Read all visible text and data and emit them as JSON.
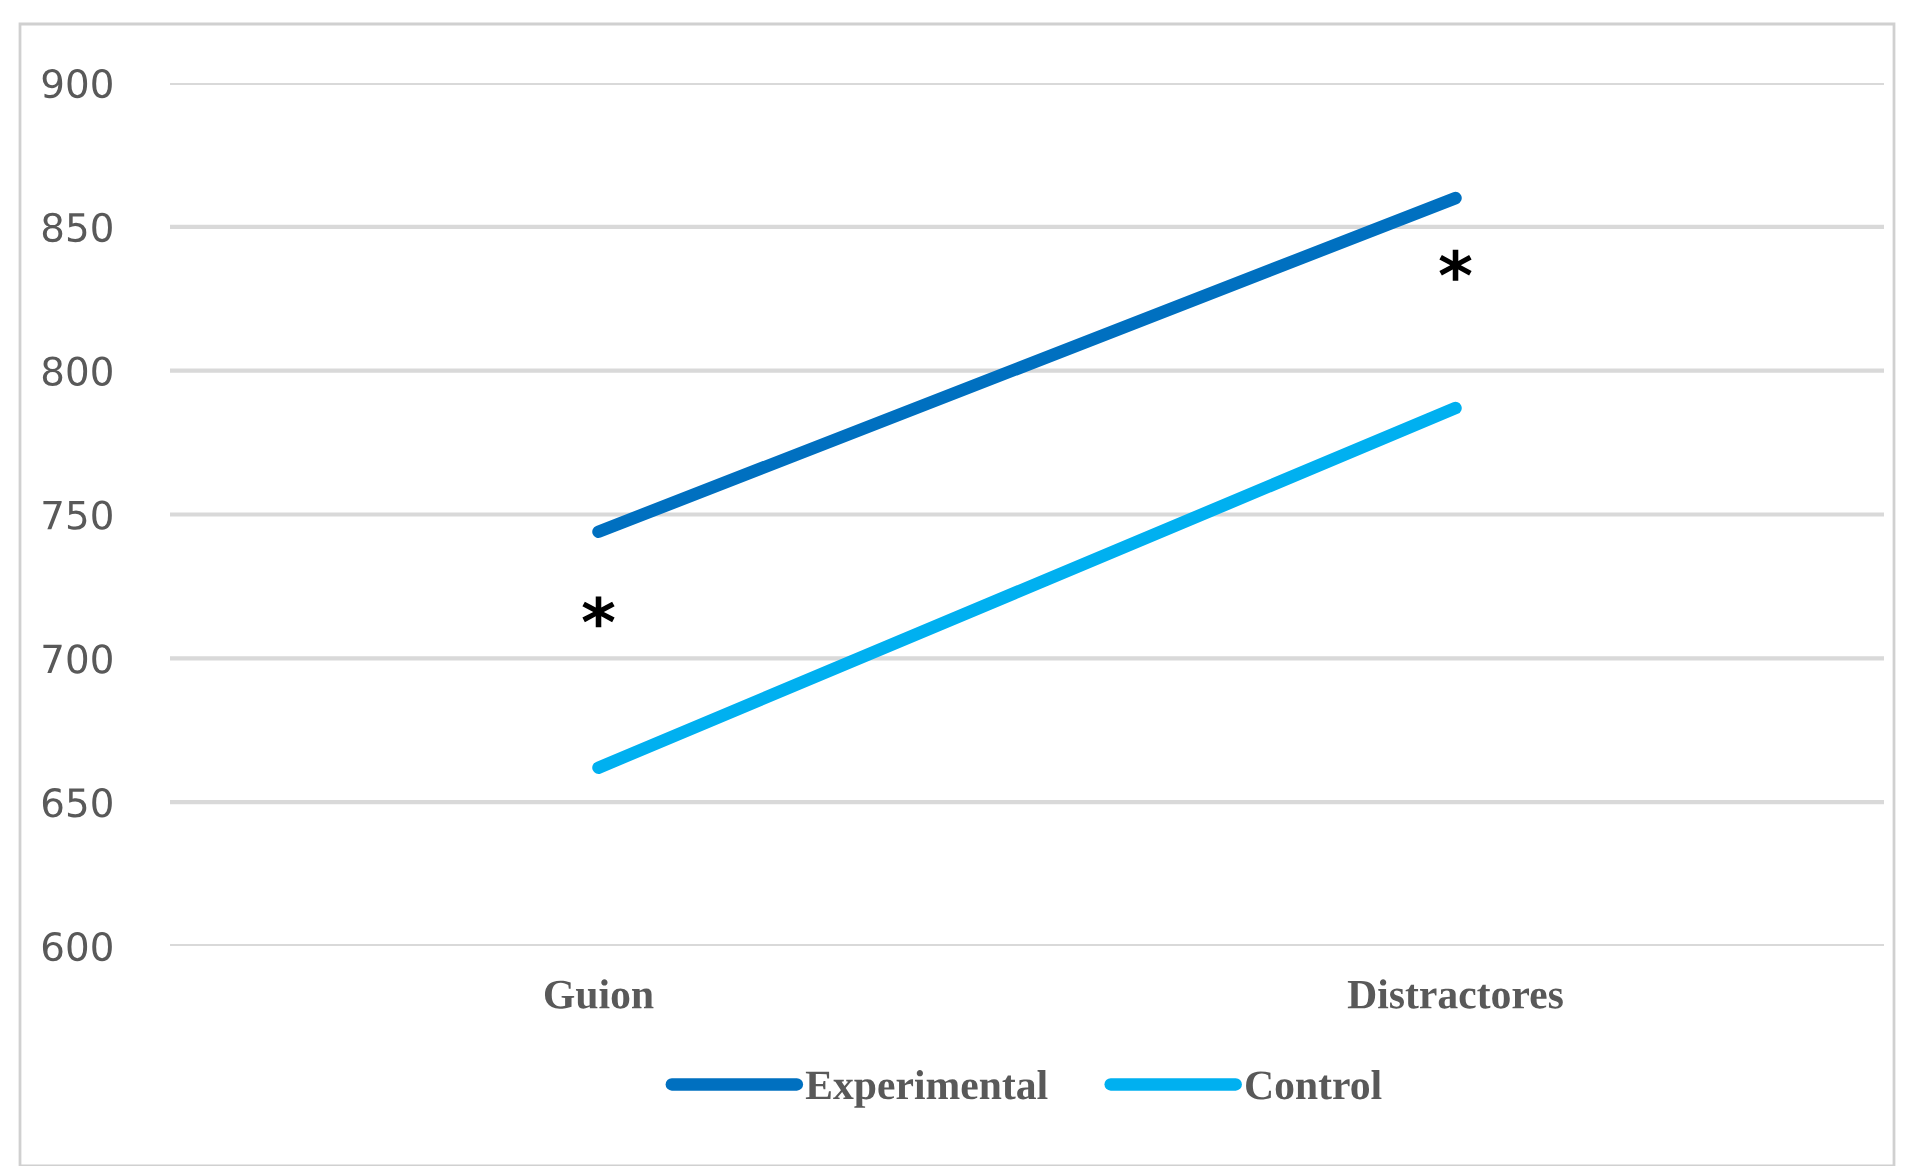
{
  "chart_data": {
    "type": "line",
    "categories": [
      "Guion",
      "Distractores"
    ],
    "series": [
      {
        "name": "Experimental",
        "color": "#0070c0",
        "values": [
          744,
          860
        ]
      },
      {
        "name": "Control",
        "color": "#00b0f0",
        "values": [
          662,
          787
        ]
      }
    ],
    "ylim": [
      600,
      900
    ],
    "yticks": [
      600,
      650,
      700,
      750,
      800,
      850,
      900
    ],
    "grid": "y",
    "legend": "bottom",
    "marker": "none",
    "line_style": "solid",
    "annotations": [
      "*",
      "*"
    ]
  }
}
